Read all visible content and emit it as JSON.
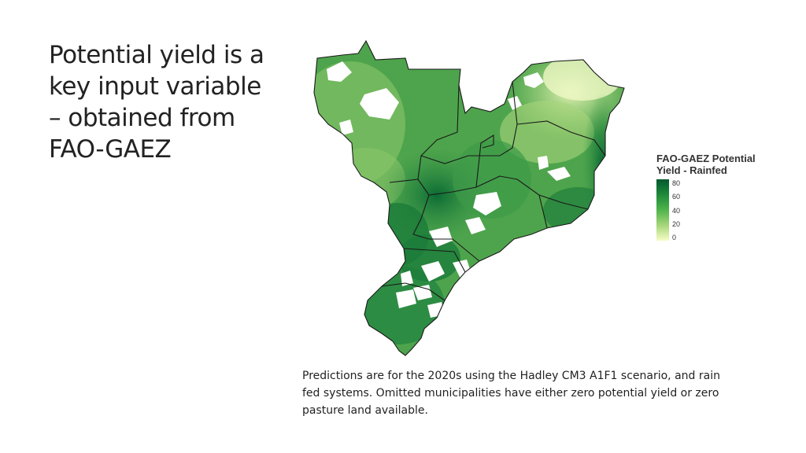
{
  "slide": {
    "title_lines": [
      "Potential yield is a",
      "key input variable",
      "– obtained from",
      "FAO-GAEZ"
    ],
    "caption_lines": [
      "Predictions are for the 2020s using the Hadley CM3 A1F1 scenario, and rain",
      "fed systems. Omitted municipalities have either zero potential yield or zero",
      "pasture land available."
    ]
  },
  "map": {
    "legend": {
      "title_lines": [
        "FAO-GAEZ Potential",
        "Yield - Rainfed"
      ],
      "ticks": [
        "80",
        "60",
        "40",
        "20",
        "0"
      ],
      "tick_values": [
        80,
        60,
        40,
        20,
        0
      ],
      "color_scale": [
        "#00582e",
        "#1f8a3a",
        "#4fb34a",
        "#a6d67a",
        "#f7fcc6"
      ],
      "no_data_color": "#ffffff"
    },
    "border_color": "#1a1a1a"
  }
}
